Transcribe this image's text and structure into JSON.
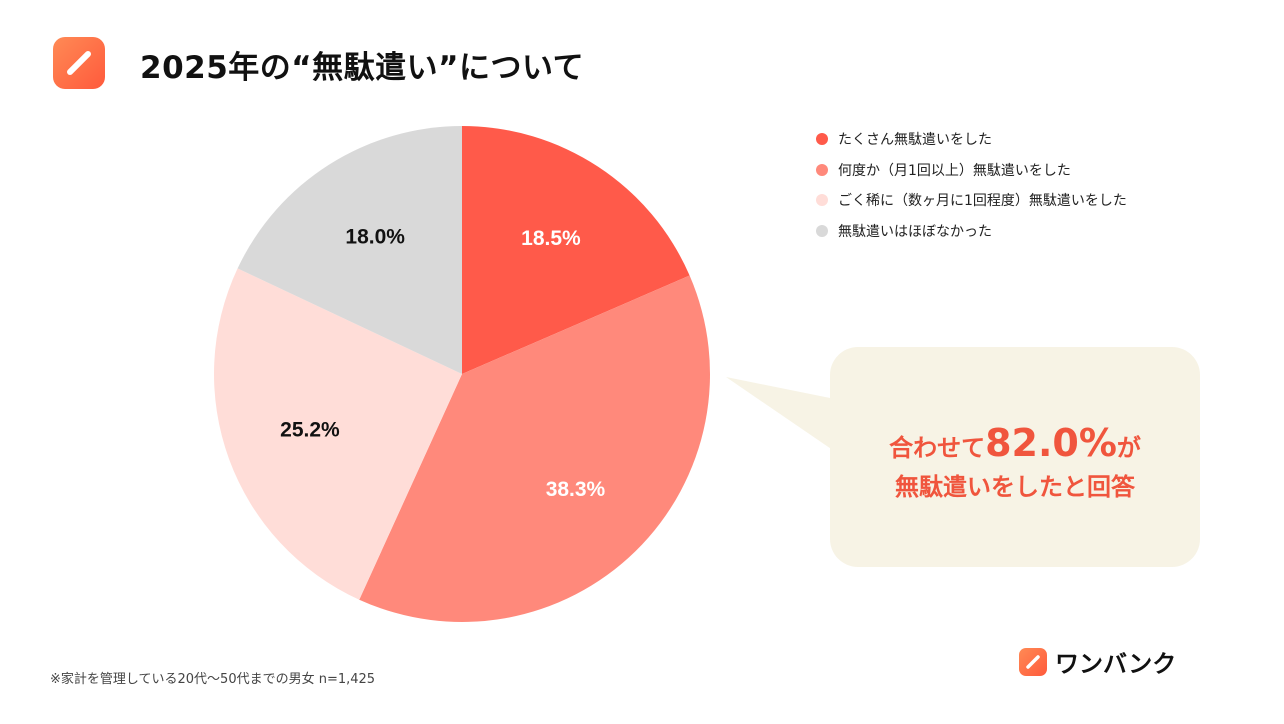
{
  "title": "2025年の“無駄遣い”について",
  "footnote": "※家計を管理している20代〜50代までの男女 n=1,425",
  "brand": {
    "name": "ワンバンク",
    "icon": "pencil-icon"
  },
  "header_icon": "pencil-icon",
  "callout": {
    "line1_prefix": "合わせて",
    "line1_value": "82.0%",
    "line1_suffix": "が",
    "line2": "無駄遣いをしたと回答"
  },
  "colors": {
    "accent": "#f0553d",
    "callout_bg": "#f7f3e5"
  },
  "chart_data": {
    "type": "pie",
    "title": "",
    "categories": [
      "たくさん無駄遣いをした",
      "何度か（月1回以上）無駄遣いをした",
      "ごく稀に（数ヶ月に1回程度）無駄遣いをした",
      "無駄遣いはほぼなかった"
    ],
    "values": [
      18.5,
      38.3,
      25.2,
      18.0
    ],
    "labels": [
      "18.5%",
      "38.3%",
      "25.2%",
      "18.0%"
    ],
    "colors": [
      "#ff5a4a",
      "#ff897b",
      "#ffddd8",
      "#d9d9d9"
    ],
    "label_colors": [
      "#ffffff",
      "#ffffff",
      "#111111",
      "#111111"
    ],
    "start": "top",
    "direction": "clockwise",
    "legend_position": "right"
  }
}
